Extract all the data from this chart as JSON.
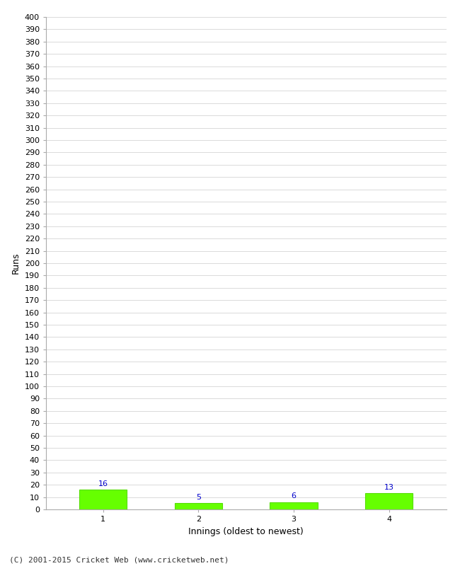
{
  "title": "",
  "categories": [
    "1",
    "2",
    "3",
    "4"
  ],
  "values": [
    16,
    5,
    6,
    13
  ],
  "bar_color": "#66ff00",
  "bar_edgecolor": "#55dd00",
  "xlabel": "Innings (oldest to newest)",
  "ylabel": "Runs",
  "ylim": [
    0,
    400
  ],
  "yticks": [
    0,
    10,
    20,
    30,
    40,
    50,
    60,
    70,
    80,
    90,
    100,
    110,
    120,
    130,
    140,
    150,
    160,
    170,
    180,
    190,
    200,
    210,
    220,
    230,
    240,
    250,
    260,
    270,
    280,
    290,
    300,
    310,
    320,
    330,
    340,
    350,
    360,
    370,
    380,
    390,
    400
  ],
  "value_label_color": "#0000cc",
  "value_label_fontsize": 8,
  "axis_label_fontsize": 9,
  "tick_fontsize": 8,
  "footer_text": "(C) 2001-2015 Cricket Web (www.cricketweb.net)",
  "footer_fontsize": 8,
  "background_color": "#ffffff",
  "grid_color": "#cccccc"
}
